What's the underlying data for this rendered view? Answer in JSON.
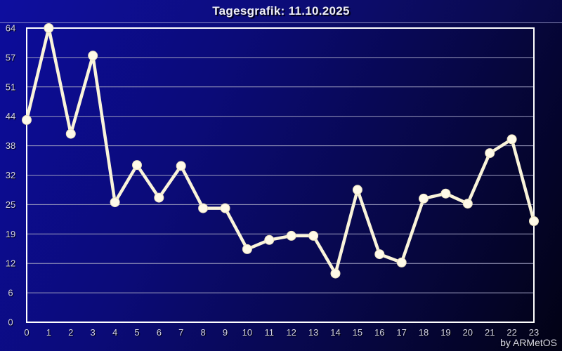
{
  "header": {
    "title": "Tagesgrafik: 11.10.2025"
  },
  "footer": {
    "credit": "by ARMetOS"
  },
  "chart_data": {
    "type": "line",
    "title": "Tagesgrafik: 11.10.2025",
    "x": [
      0,
      1,
      2,
      3,
      4,
      5,
      6,
      7,
      8,
      9,
      10,
      11,
      12,
      13,
      14,
      15,
      16,
      17,
      18,
      19,
      20,
      21,
      22,
      23
    ],
    "x_tick_labels": [
      "0",
      "1",
      "2",
      "3",
      "4",
      "5",
      "6",
      "7",
      "8",
      "9",
      "10",
      "11",
      "12",
      "13",
      "14",
      "15",
      "16",
      "17",
      "18",
      "19",
      "20",
      "21",
      "22",
      "23"
    ],
    "values": [
      44,
      64,
      41,
      58,
      26.1,
      34.2,
      27.1,
      34,
      24.8,
      24.8,
      15.9,
      17.9,
      18.8,
      18.8,
      10.6,
      28.8,
      14.8,
      13,
      26.9,
      28,
      25.8,
      36.8,
      39.8,
      22
    ],
    "ylim": [
      0,
      64
    ],
    "y_tick_labels": [
      "64",
      "57",
      "51",
      "44",
      "38",
      "32",
      "25",
      "19",
      "12",
      "6",
      "0"
    ],
    "xlabel": "",
    "ylabel": "",
    "grid": true,
    "legend_position": "none",
    "colors": {
      "line": "#FAF4DA",
      "marker_fill": "#FFFAE8",
      "marker_edge": "#EBE1BE",
      "grid": "#9C9CBE",
      "axis_border": "#FFFFFF",
      "tick_text": "#D4D4E4",
      "title_text": "#EEEEF6",
      "bg_top_left": "#0C0C9C",
      "bg_bottom_right": "#020214"
    }
  }
}
